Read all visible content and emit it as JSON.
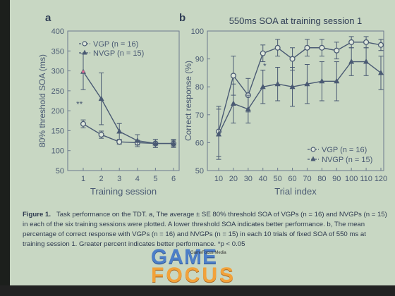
{
  "chart_data": [
    {
      "panel_label": "a",
      "type": "line",
      "xlabel": "Training session",
      "ylabel": "80% threshold SOA (ms)",
      "x": [
        1,
        2,
        3,
        4,
        5,
        6
      ],
      "xticks": [
        "1",
        "2",
        "3",
        "4",
        "5",
        "6"
      ],
      "ylim": [
        50,
        400
      ],
      "yticks": [
        "50",
        "100",
        "150",
        "200",
        "250",
        "300",
        "350",
        "400"
      ],
      "grid": false,
      "legend_position": "top-right",
      "annotation": "**",
      "series": [
        {
          "name": "VGP (n = 16)",
          "marker": "circle-open",
          "values": [
            167,
            140,
            122,
            120,
            118,
            118
          ],
          "errors": [
            10,
            9,
            6,
            6,
            10,
            8
          ]
        },
        {
          "name": "NVGP (n = 15)",
          "marker": "triangle-filled",
          "values": [
            298,
            230,
            148,
            125,
            118,
            118
          ],
          "errors": [
            45,
            65,
            20,
            15,
            10,
            10
          ]
        }
      ]
    },
    {
      "panel_label": "b",
      "type": "line",
      "title": "550ms SOA at training session 1",
      "xlabel": "Trial index",
      "ylabel": "Correct response (%)",
      "x": [
        10,
        20,
        30,
        40,
        50,
        60,
        70,
        80,
        90,
        100,
        110,
        120
      ],
      "xticks": [
        "10",
        "20",
        "30",
        "40",
        "50",
        "60",
        "70",
        "80",
        "90",
        "100",
        "110",
        "120"
      ],
      "ylim": [
        50,
        100
      ],
      "yticks": [
        "50",
        "60",
        "70",
        "80",
        "90",
        "100"
      ],
      "grid": false,
      "legend_position": "bottom-right",
      "annotation": "*",
      "series": [
        {
          "name": "VGP (n = 16)",
          "marker": "circle-open",
          "values": [
            64,
            84,
            77,
            92,
            94,
            90,
            94,
            94,
            93,
            96,
            96,
            95
          ],
          "errors": [
            9,
            7,
            6,
            3,
            3,
            4,
            3,
            3,
            3,
            2,
            2,
            2
          ]
        },
        {
          "name": "NVGP (n = 15)",
          "marker": "triangle-filled",
          "values": [
            63,
            74,
            72,
            80,
            81,
            80,
            81,
            82,
            82,
            89,
            89,
            85
          ],
          "errors": [
            9,
            7,
            5,
            6,
            6,
            7,
            7,
            7,
            7,
            5,
            5,
            6
          ]
        }
      ]
    }
  ],
  "caption": {
    "figure": "Figure 1.",
    "text": "Task performance on the TDT. a, The average ± SE 80% threshold SOA of VGPs (n = 16) and NVGPs (n = 15) in each of the six training sessions were plotted. A lower threshold SOA indicates better performance. b, The mean percentage of correct response with VGPs (n = 16) and NVGPs (n = 15) in each 10 trials of fixed SOA of 550 ms at training session 1. Greater percent indicates better performance. *p < 0.05"
  },
  "watermark": {
    "line1": "GAME",
    "line2": "FOCUS",
    "media": "GameFocus Media"
  },
  "colors": {
    "background": "#c8d7c3",
    "ink": "#4a5a73",
    "grid_frame": "#6c7a8e"
  }
}
